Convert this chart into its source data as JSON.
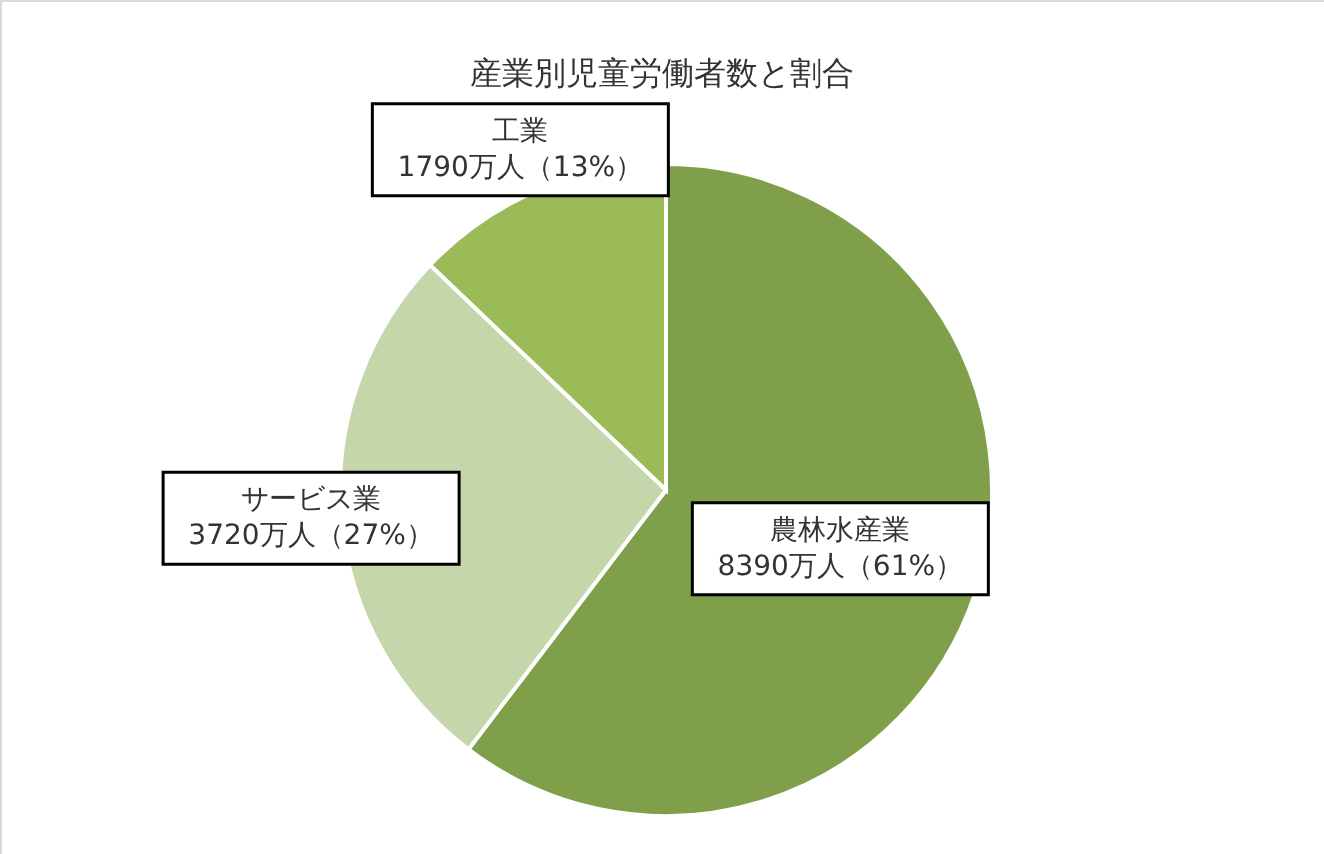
{
  "chart_data": {
    "type": "pie",
    "title": "産業別児童労働者数と割合",
    "categories": [
      "農林水産業",
      "サービス業",
      "工業"
    ],
    "values": [
      8390,
      3720,
      1790
    ],
    "colors": [
      "#7f9f4b",
      "#c6d6ab",
      "#9bbb59"
    ],
    "value_labels": [
      "8390万人（61%）",
      "3720万人（27%）",
      "1790万人（13%）"
    ],
    "legend": false
  }
}
